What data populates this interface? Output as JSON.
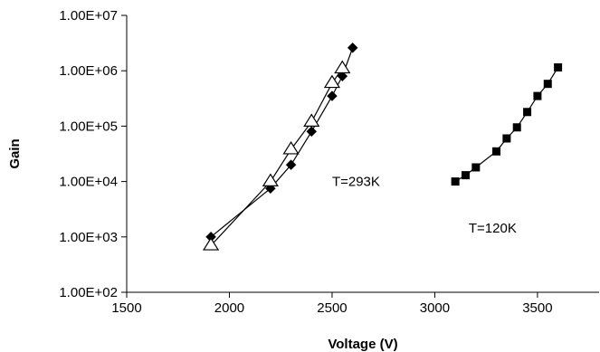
{
  "chart_data": {
    "type": "scatter",
    "xlabel": "Voltage (V)",
    "ylabel": "Gain",
    "xlim": [
      1500,
      3800
    ],
    "ylim": [
      100,
      10000000
    ],
    "yscale": "log",
    "grid": false,
    "x_ticks": [
      {
        "value": 1500,
        "label": "1500"
      },
      {
        "value": 2000,
        "label": "2000"
      },
      {
        "value": 2500,
        "label": "2500"
      },
      {
        "value": 3000,
        "label": "3000"
      },
      {
        "value": 3500,
        "label": "3500"
      }
    ],
    "y_ticks": [
      {
        "value": 100,
        "label": "1.00E+02"
      },
      {
        "value": 1000,
        "label": "1.00E+03"
      },
      {
        "value": 10000,
        "label": "1.00E+04"
      },
      {
        "value": 100000,
        "label": "1.00E+05"
      },
      {
        "value": 1000000,
        "label": "1.00E+06"
      },
      {
        "value": 10000000,
        "label": "1.00E+07"
      }
    ],
    "series": [
      {
        "marker": "diamond",
        "x": [
          1910,
          2200,
          2300,
          2400,
          2500,
          2550,
          2600
        ],
        "y": [
          1000,
          7500,
          20000,
          80000,
          350000,
          800000,
          2600000
        ]
      },
      {
        "marker": "triangle-open",
        "x": [
          1910,
          2200,
          2300,
          2400,
          2500,
          2550
        ],
        "y": [
          700,
          10000,
          38000,
          120000,
          600000,
          1100000
        ]
      },
      {
        "marker": "square",
        "x": [
          3100,
          3150,
          3200,
          3300,
          3350,
          3400,
          3450,
          3500,
          3550,
          3600
        ],
        "y": [
          10000,
          13000,
          18000,
          35000,
          60000,
          95000,
          180000,
          350000,
          580000,
          1150000
        ]
      }
    ],
    "annotations": [
      {
        "text": "T=293K",
        "x": 2500,
        "y": 10000
      },
      {
        "text": "T=120K",
        "x": 3165,
        "y": 1450
      }
    ]
  }
}
